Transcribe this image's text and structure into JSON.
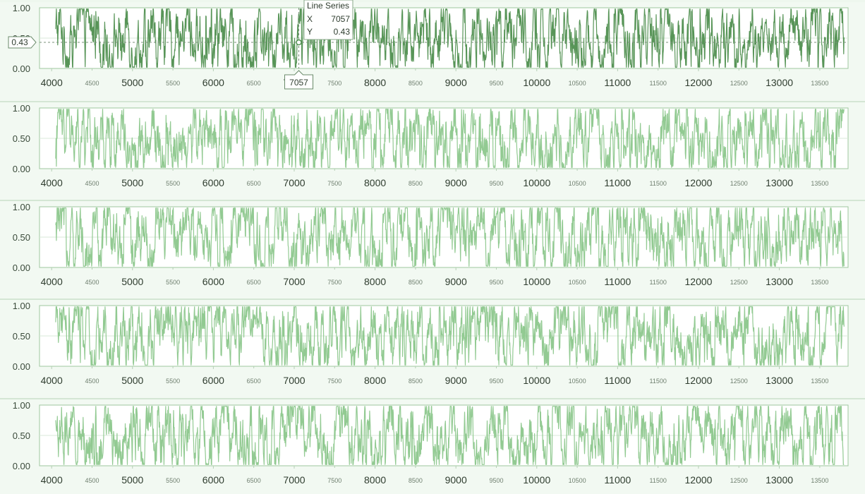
{
  "colors": {
    "series_dark": "#4f8f4f",
    "series_light": "#8cc78c",
    "background": "#eef7ee"
  },
  "tooltip": {
    "title": "Line Series",
    "x_label": "X",
    "x_value": "7057",
    "y_label": "Y",
    "y_value": "0.43"
  },
  "cursor": {
    "x_marker": "7057",
    "y_marker": "0.43"
  },
  "chart_data": [
    {
      "type": "line",
      "series": [
        {
          "color": "#4f8f4f"
        }
      ],
      "xlim": [
        3850,
        13850
      ],
      "ylim": [
        0,
        1
      ],
      "y_ticks": [
        "0.00",
        "0.50",
        "1.00"
      ],
      "x_major_ticks": [
        "4000",
        "5000",
        "6000",
        "7000",
        "8000",
        "9000",
        "10000",
        "11000",
        "12000",
        "13000"
      ],
      "x_minor_ticks": [
        "4500",
        "5500",
        "6500",
        "7500",
        "8500",
        "9500",
        "10500",
        "11500",
        "12500",
        "13500"
      ],
      "highlight_point": {
        "x": 7057,
        "y": 0.43
      }
    },
    {
      "type": "line",
      "series": [
        {
          "color": "#8cc78c"
        }
      ],
      "xlim": [
        3850,
        13850
      ],
      "ylim": [
        0,
        1
      ],
      "y_ticks": [
        "0.00",
        "0.50",
        "1.00"
      ],
      "x_major_ticks": [
        "4000",
        "5000",
        "6000",
        "7000",
        "8000",
        "9000",
        "10000",
        "11000",
        "12000",
        "13000"
      ],
      "x_minor_ticks": [
        "4500",
        "5500",
        "6500",
        "7500",
        "8500",
        "9500",
        "10500",
        "11500",
        "12500",
        "13500"
      ]
    },
    {
      "type": "line",
      "series": [
        {
          "color": "#8cc78c"
        }
      ],
      "xlim": [
        3850,
        13850
      ],
      "ylim": [
        0,
        1
      ],
      "y_ticks": [
        "0.00",
        "0.50",
        "1.00"
      ],
      "x_major_ticks": [
        "4000",
        "5000",
        "6000",
        "7000",
        "8000",
        "9000",
        "10000",
        "11000",
        "12000",
        "13000"
      ],
      "x_minor_ticks": [
        "4500",
        "5500",
        "6500",
        "7500",
        "8500",
        "9500",
        "10500",
        "11500",
        "12500",
        "13500"
      ]
    },
    {
      "type": "line",
      "series": [
        {
          "color": "#8cc78c"
        }
      ],
      "xlim": [
        3850,
        13850
      ],
      "ylim": [
        0,
        1
      ],
      "y_ticks": [
        "0.00",
        "0.50",
        "1.00"
      ],
      "x_major_ticks": [
        "4000",
        "5000",
        "6000",
        "7000",
        "8000",
        "9000",
        "10000",
        "11000",
        "12000",
        "13000"
      ],
      "x_minor_ticks": [
        "4500",
        "5500",
        "6500",
        "7500",
        "8500",
        "9500",
        "10500",
        "11500",
        "12500",
        "13500"
      ]
    },
    {
      "type": "line",
      "series": [
        {
          "color": "#8cc78c"
        }
      ],
      "xlim": [
        3850,
        13850
      ],
      "ylim": [
        0,
        1
      ],
      "y_ticks": [
        "0.00",
        "0.50",
        "1.00"
      ],
      "x_major_ticks": [
        "4000",
        "5000",
        "6000",
        "7000",
        "8000",
        "9000",
        "10000",
        "11000",
        "12000",
        "13000"
      ],
      "x_minor_ticks": [
        "4500",
        "5500",
        "6500",
        "7500",
        "8500",
        "9500",
        "10500",
        "11500",
        "12500",
        "13500"
      ]
    }
  ]
}
